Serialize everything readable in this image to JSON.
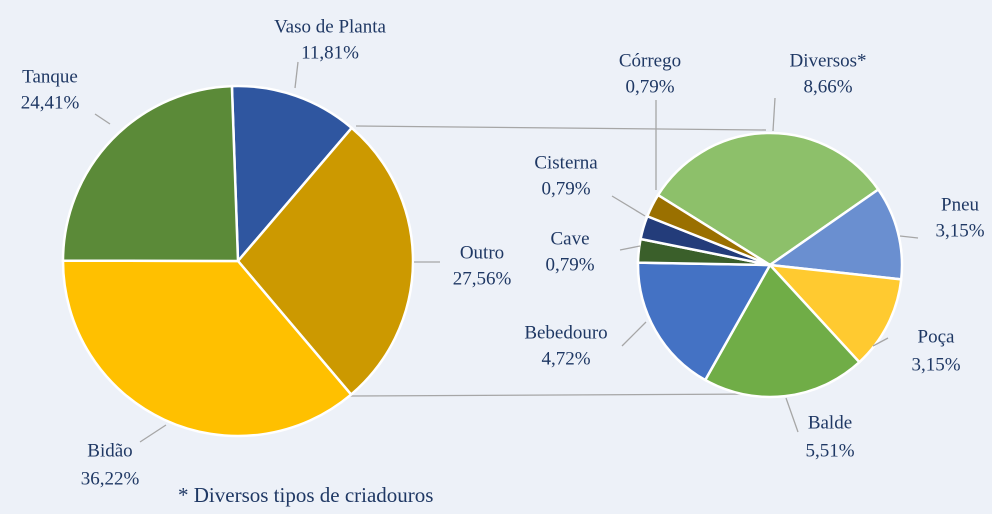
{
  "chart_data": [
    {
      "type": "pie",
      "categories": [
        "Vaso de Planta",
        "Outro",
        "Bidão",
        "Tanque"
      ],
      "values": [
        11.81,
        27.56,
        36.22,
        24.41
      ],
      "value_labels": [
        "11,81%",
        "27,56%",
        "36,22%",
        "24,41%"
      ],
      "colors": [
        "#2f56a0",
        "#cc9900",
        "#ffc000",
        "#5b8a38"
      ],
      "annotation": "* Diversos tipos de criadouros"
    },
    {
      "type": "pie",
      "categories": [
        "Diversos*",
        "Pneu",
        "Poça",
        "Balde",
        "Bebedouro",
        "Cave",
        "Cisterna",
        "Córrego"
      ],
      "values": [
        8.66,
        3.15,
        3.15,
        5.51,
        4.72,
        0.79,
        0.79,
        0.79
      ],
      "value_labels": [
        "8,66%",
        "3,15%",
        "3,15%",
        "5,51%",
        "4,72%",
        "0,79%",
        "0,79%",
        "0,79%"
      ],
      "colors": [
        "#8dc06a",
        "#6a8fd0",
        "#ffca30",
        "#70ad47",
        "#4472c4",
        "#3a5f2a",
        "#233c7a",
        "#9a7000"
      ]
    }
  ]
}
